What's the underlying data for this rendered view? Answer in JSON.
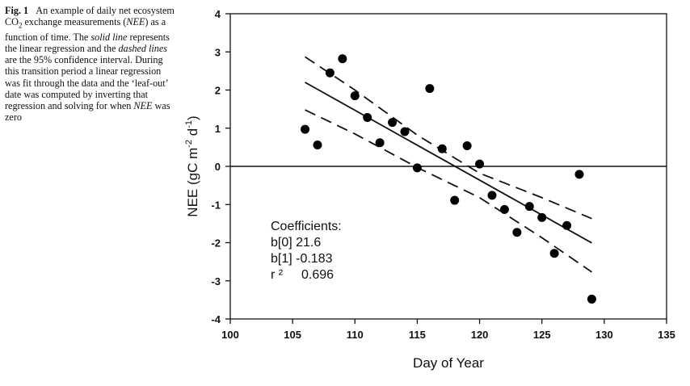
{
  "caption": {
    "fig_label": "Fig. 1",
    "text_1": "An example of daily net ecosystem CO",
    "co2_sub": "2",
    "text_2": " exchange measurements (",
    "nee_1": "NEE",
    "text_3": ") as a function of time. The ",
    "solid_line": "solid line",
    "text_4": " represents the linear regression and the ",
    "dashed_lines": "dashed lines",
    "text_5": " are the 95% confidence interval. During this transition period a linear regression was fit through the data and the ‘leaf-out’ date was computed by inverting that regression and solving for when ",
    "nee_2": "NEE",
    "text_6": " was zero"
  },
  "chart_data": {
    "type": "scatter",
    "xlabel": "Day of Year",
    "ylabel_parts": [
      "NEE (gC m",
      "-2",
      " d",
      "-1",
      ")"
    ],
    "xlim": [
      100,
      135
    ],
    "ylim": [
      -4,
      4
    ],
    "x_ticks": [
      100,
      105,
      110,
      115,
      120,
      125,
      130,
      135
    ],
    "y_ticks": [
      -4,
      -3,
      -2,
      -1,
      0,
      1,
      2,
      3,
      4
    ],
    "points": [
      {
        "x": 106,
        "y": 0.97
      },
      {
        "x": 107,
        "y": 0.56
      },
      {
        "x": 108,
        "y": 2.45
      },
      {
        "x": 109,
        "y": 2.82
      },
      {
        "x": 110,
        "y": 1.85
      },
      {
        "x": 111,
        "y": 1.28
      },
      {
        "x": 112,
        "y": 0.62
      },
      {
        "x": 113,
        "y": 1.15
      },
      {
        "x": 114,
        "y": 0.91
      },
      {
        "x": 115,
        "y": -0.04
      },
      {
        "x": 116,
        "y": 2.04
      },
      {
        "x": 117,
        "y": 0.46
      },
      {
        "x": 118,
        "y": -0.89
      },
      {
        "x": 119,
        "y": 0.54
      },
      {
        "x": 120,
        "y": 0.06
      },
      {
        "x": 121,
        "y": -0.76
      },
      {
        "x": 122,
        "y": -1.13
      },
      {
        "x": 123,
        "y": -1.73
      },
      {
        "x": 124,
        "y": -1.05
      },
      {
        "x": 125,
        "y": -1.34
      },
      {
        "x": 126,
        "y": -2.28
      },
      {
        "x": 127,
        "y": -1.55
      },
      {
        "x": 128,
        "y": -0.21
      },
      {
        "x": 129,
        "y": -3.48
      }
    ],
    "regression": {
      "x_range": [
        106,
        129
      ],
      "intercept": 21.6,
      "slope": -0.183
    },
    "confidence_upper": [
      {
        "x": 106,
        "y": 2.87
      },
      {
        "x": 110,
        "y": 2.0
      },
      {
        "x": 115,
        "y": 0.82
      },
      {
        "x": 120,
        "y": -0.18
      },
      {
        "x": 125,
        "y": -0.82
      },
      {
        "x": 129,
        "y": -1.37
      }
    ],
    "confidence_lower": [
      {
        "x": 106,
        "y": 1.48
      },
      {
        "x": 110,
        "y": 0.85
      },
      {
        "x": 115,
        "y": -0.03
      },
      {
        "x": 120,
        "y": -0.82
      },
      {
        "x": 125,
        "y": -1.87
      },
      {
        "x": 129,
        "y": -2.77
      }
    ],
    "zero_line": 0,
    "coefficients": {
      "title": "Coefficients:",
      "b0": "b[0] 21.6",
      "b1": "b[1] -0.183",
      "r2_label": "r ²",
      "r2_value": "0.696"
    }
  }
}
